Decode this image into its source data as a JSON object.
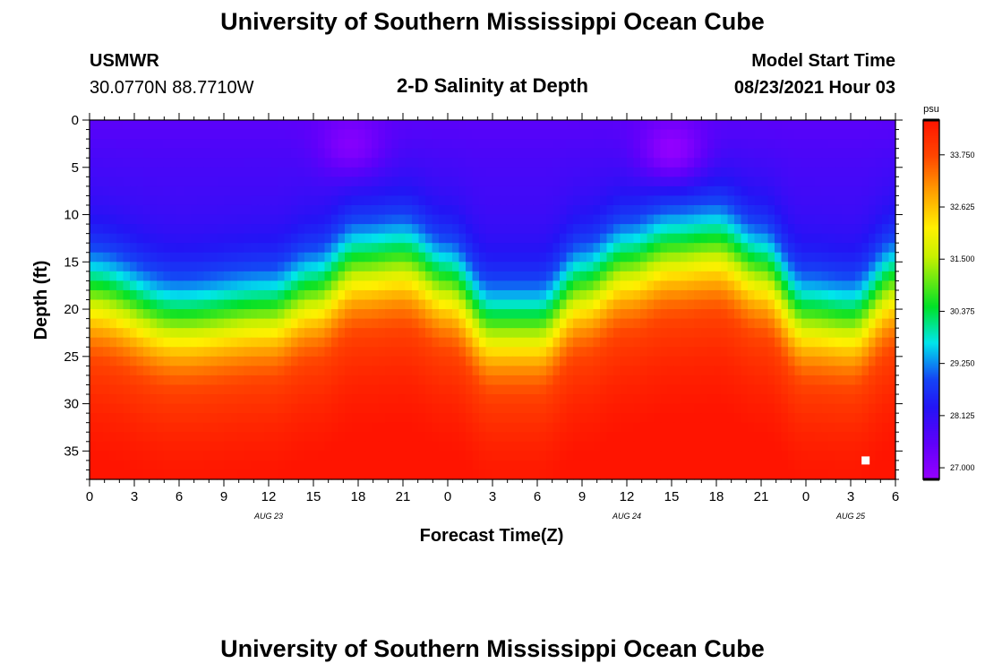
{
  "header": {
    "title": "University of Southern Mississippi Ocean Cube",
    "station_name": "USMWR",
    "station_coords": "30.0770N  88.7710W",
    "subtitle": "2-D Salinity at Depth",
    "model_start_label": "Model Start Time",
    "model_start_time": "08/23/2021 Hour 03"
  },
  "footer": {
    "title": "University of Southern Mississippi Ocean Cube"
  },
  "chart_data": {
    "type": "heatmap",
    "title": "2-D Salinity at Depth",
    "xlabel": "Forecast Time(Z)",
    "ylabel": "Depth (ft)",
    "x_ticks": [
      "0",
      "3",
      "6",
      "9",
      "12",
      "15",
      "18",
      "21",
      "0",
      "3",
      "6",
      "9",
      "12",
      "15",
      "18",
      "21",
      "0",
      "3",
      "6"
    ],
    "x_range_hours": [
      0,
      54
    ],
    "day_labels": [
      {
        "label": "AUG  23",
        "hour": 12
      },
      {
        "label": "AUG  24",
        "hour": 36
      },
      {
        "label": "AUG  25",
        "hour": 51
      }
    ],
    "y_ticks": [
      0,
      5,
      10,
      15,
      20,
      25,
      30,
      35
    ],
    "y_range_ft": [
      0,
      38
    ],
    "y_reversed": true,
    "colorbar": {
      "unit": "psu",
      "min": 26.75,
      "max": 34.5,
      "ticks": [
        "27.000",
        "28.125",
        "29.250",
        "30.375",
        "31.500",
        "32.625",
        "33.750"
      ]
    },
    "halocline_depth_ft_by_hour": [
      {
        "hour": 0,
        "depth": 18.5
      },
      {
        "hour": 6,
        "depth": 21.5
      },
      {
        "hour": 12,
        "depth": 20.5
      },
      {
        "hour": 15,
        "depth": 18.5
      },
      {
        "hour": 18,
        "depth": 15.5
      },
      {
        "hour": 21,
        "depth": 15.0
      },
      {
        "hour": 24,
        "depth": 17.5
      },
      {
        "hour": 27,
        "depth": 22.0
      },
      {
        "hour": 30,
        "depth": 22.0
      },
      {
        "hour": 33,
        "depth": 18.0
      },
      {
        "hour": 36,
        "depth": 15.5
      },
      {
        "hour": 39,
        "depth": 14.0
      },
      {
        "hour": 42,
        "depth": 13.5
      },
      {
        "hour": 45,
        "depth": 16.0
      },
      {
        "hour": 48,
        "depth": 21.0
      },
      {
        "hour": 51,
        "depth": 21.5
      },
      {
        "hour": 54,
        "depth": 17.5
      }
    ],
    "surface_salinity_psu": 27.9,
    "bottom_salinity_psu": 34.3,
    "high_salinity_patches": [
      {
        "hour": 17.5,
        "depth": 2.5,
        "salinity": 27.0
      },
      {
        "hour": 39,
        "depth": 3.0,
        "salinity": 26.8
      }
    ],
    "marker": {
      "hour": 52,
      "depth": 36
    }
  }
}
